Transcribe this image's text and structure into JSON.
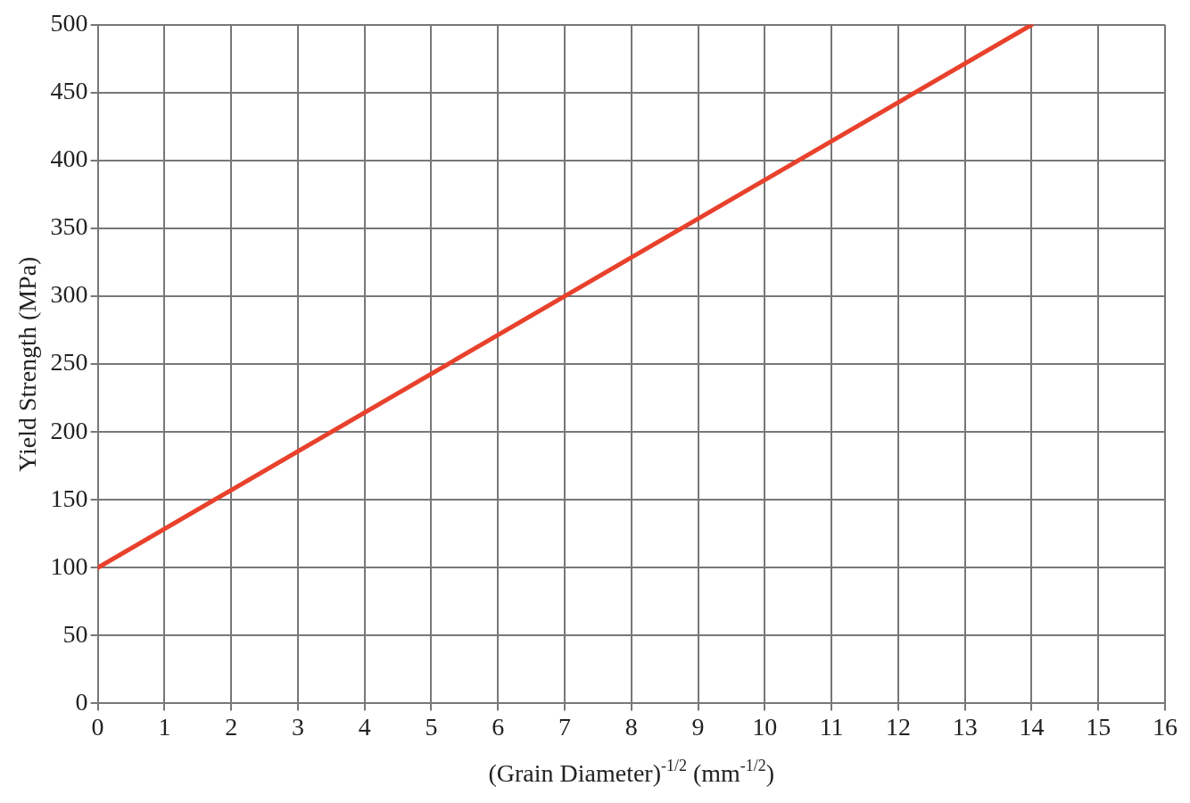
{
  "chart_data": {
    "type": "line",
    "xlabel": "(Grain Diameter)$^{-1/2}$ (mm$^{-1/2}$)",
    "ylabel": "Yield Strength (MPa)",
    "xlim": [
      0,
      16
    ],
    "xticks": [
      0,
      1,
      2,
      3,
      4,
      5,
      6,
      7,
      8,
      9,
      10,
      11,
      12,
      13,
      14,
      15,
      16
    ],
    "ylim": [
      0,
      500
    ],
    "yticks": [
      0,
      50,
      100,
      150,
      200,
      250,
      300,
      350,
      400,
      450,
      500
    ],
    "grid": true,
    "series": [
      {
        "x": [
          0,
          14
        ],
        "values": [
          100,
          500
        ],
        "color": "#e8412c"
      }
    ]
  }
}
